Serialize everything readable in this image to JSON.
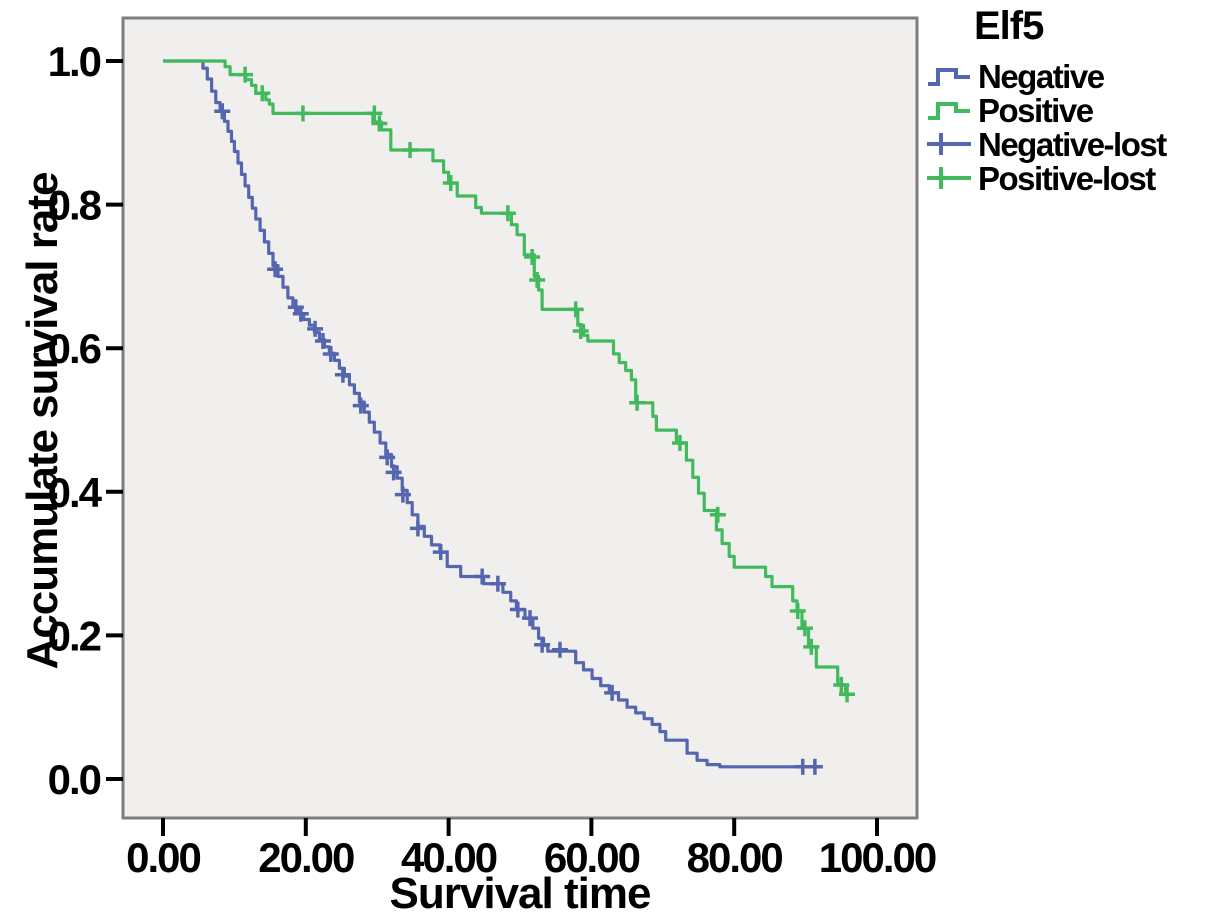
{
  "figure": {
    "legend": {
      "title": "Elf5",
      "entries": [
        {
          "label": "Negative",
          "symbol": "step-line",
          "color": "#5566b0"
        },
        {
          "label": "Positive",
          "symbol": "step-line",
          "color": "#42b95c"
        },
        {
          "label": "Negative-lost",
          "symbol": "censor-plus",
          "color": "#5566b0"
        },
        {
          "label": "Positive-lost",
          "symbol": "censor-plus",
          "color": "#42b95c"
        }
      ]
    }
  },
  "chart_data": {
    "type": "line",
    "subtype": "kaplan_meier_step",
    "title": "",
    "legend_title": "Elf5",
    "xlabel": "Survival time",
    "ylabel": "Accumulate survival rate",
    "xlim": [
      0,
      100
    ],
    "ylim": [
      0,
      1.0
    ],
    "grid": false,
    "legend_position": "outside-top-right",
    "plot_background": "#f0efee",
    "frame_color": "#7e7e7e",
    "tick_color": "#000000",
    "x_ticks": [
      {
        "v": 0,
        "label": "0.00"
      },
      {
        "v": 20,
        "label": "20.00"
      },
      {
        "v": 40,
        "label": "40.00"
      },
      {
        "v": 60,
        "label": "60.00"
      },
      {
        "v": 80,
        "label": "80.00"
      },
      {
        "v": 100,
        "label": "100.00"
      }
    ],
    "y_ticks": [
      {
        "v": 0.0,
        "label": "0.0"
      },
      {
        "v": 0.2,
        "label": "0.2"
      },
      {
        "v": 0.4,
        "label": "0.4"
      },
      {
        "v": 0.6,
        "label": "0.6"
      },
      {
        "v": 0.8,
        "label": "0.8"
      },
      {
        "v": 1.0,
        "label": "1.0"
      }
    ],
    "series": [
      {
        "name": "Negative",
        "color": "#5566b0",
        "end_t": 91.7,
        "steps": [
          [
            0,
            1.0
          ],
          [
            5.6,
            0.99
          ],
          [
            6.2,
            0.975
          ],
          [
            6.8,
            0.958
          ],
          [
            7.4,
            0.942
          ],
          [
            8.0,
            0.93
          ],
          [
            8.6,
            0.916
          ],
          [
            9.1,
            0.902
          ],
          [
            9.6,
            0.888
          ],
          [
            10.0,
            0.874
          ],
          [
            10.5,
            0.858
          ],
          [
            11.0,
            0.842
          ],
          [
            11.5,
            0.826
          ],
          [
            12.0,
            0.81
          ],
          [
            12.5,
            0.795
          ],
          [
            13.0,
            0.78
          ],
          [
            13.6,
            0.764
          ],
          [
            14.2,
            0.748
          ],
          [
            14.8,
            0.732
          ],
          [
            15.4,
            0.715
          ],
          [
            16.1,
            0.7
          ],
          [
            16.8,
            0.685
          ],
          [
            17.5,
            0.67
          ],
          [
            18.2,
            0.657
          ],
          [
            18.9,
            0.648
          ],
          [
            19.7,
            0.64
          ],
          [
            20.5,
            0.632
          ],
          [
            21.2,
            0.622
          ],
          [
            21.9,
            0.612
          ],
          [
            22.6,
            0.602
          ],
          [
            23.3,
            0.593
          ],
          [
            24.0,
            0.583
          ],
          [
            24.7,
            0.572
          ],
          [
            25.4,
            0.561
          ],
          [
            26.1,
            0.549
          ],
          [
            26.8,
            0.537
          ],
          [
            27.5,
            0.525
          ],
          [
            28.2,
            0.511
          ],
          [
            28.9,
            0.497
          ],
          [
            29.6,
            0.483
          ],
          [
            30.4,
            0.468
          ],
          [
            31.2,
            0.452
          ],
          [
            32.0,
            0.435
          ],
          [
            32.8,
            0.419
          ],
          [
            33.5,
            0.402
          ],
          [
            34.2,
            0.385
          ],
          [
            34.9,
            0.368
          ],
          [
            35.7,
            0.352
          ],
          [
            36.6,
            0.338
          ],
          [
            37.6,
            0.326
          ],
          [
            38.8,
            0.316
          ],
          [
            39.8,
            0.296
          ],
          [
            41.7,
            0.282
          ],
          [
            44.9,
            0.272
          ],
          [
            47.6,
            0.26
          ],
          [
            48.7,
            0.248
          ],
          [
            49.5,
            0.236
          ],
          [
            50.7,
            0.224
          ],
          [
            51.8,
            0.21
          ],
          [
            52.6,
            0.196
          ],
          [
            53.3,
            0.186
          ],
          [
            53.9,
            0.178
          ],
          [
            57.8,
            0.162
          ],
          [
            58.9,
            0.152
          ],
          [
            60.1,
            0.14
          ],
          [
            61.3,
            0.13
          ],
          [
            62.5,
            0.12
          ],
          [
            63.8,
            0.11
          ],
          [
            65.0,
            0.1
          ],
          [
            66.2,
            0.092
          ],
          [
            67.4,
            0.084
          ],
          [
            68.5,
            0.076
          ],
          [
            69.6,
            0.066
          ],
          [
            70.4,
            0.054
          ],
          [
            73.4,
            0.036
          ],
          [
            74.8,
            0.026
          ],
          [
            76.2,
            0.02
          ],
          [
            78.0,
            0.017
          ]
        ],
        "censors": [
          [
            8.3,
            0.93
          ],
          [
            15.7,
            0.71
          ],
          [
            18.6,
            0.657
          ],
          [
            19.3,
            0.648
          ],
          [
            21.3,
            0.627
          ],
          [
            22.4,
            0.61
          ],
          [
            23.5,
            0.592
          ],
          [
            25.2,
            0.563
          ],
          [
            27.7,
            0.52
          ],
          [
            31.4,
            0.448
          ],
          [
            32.3,
            0.427
          ],
          [
            33.6,
            0.396
          ],
          [
            35.7,
            0.349
          ],
          [
            38.9,
            0.316
          ],
          [
            44.7,
            0.282
          ],
          [
            46.9,
            0.272
          ],
          [
            49.7,
            0.236
          ],
          [
            51.4,
            0.224
          ],
          [
            53.1,
            0.187
          ],
          [
            55.6,
            0.18
          ],
          [
            62.9,
            0.12
          ],
          [
            89.6,
            0.017
          ],
          [
            91.3,
            0.017
          ]
        ]
      },
      {
        "name": "Positive",
        "color": "#42b95c",
        "end_t": 96.4,
        "steps": [
          [
            0,
            1.0
          ],
          [
            8.7,
            0.992
          ],
          [
            9.4,
            0.981
          ],
          [
            11.6,
            0.974
          ],
          [
            12.4,
            0.966
          ],
          [
            13.0,
            0.955
          ],
          [
            14.4,
            0.946
          ],
          [
            14.9,
            0.94
          ],
          [
            15.4,
            0.927
          ],
          [
            29.4,
            0.915
          ],
          [
            30.6,
            0.904
          ],
          [
            31.9,
            0.876
          ],
          [
            37.8,
            0.861
          ],
          [
            39.3,
            0.845
          ],
          [
            40.0,
            0.83
          ],
          [
            41.2,
            0.812
          ],
          [
            43.8,
            0.796
          ],
          [
            44.6,
            0.788
          ],
          [
            48.8,
            0.772
          ],
          [
            49.6,
            0.758
          ],
          [
            50.6,
            0.73
          ],
          [
            52.0,
            0.7
          ],
          [
            52.6,
            0.681
          ],
          [
            53.1,
            0.654
          ],
          [
            58.1,
            0.632
          ],
          [
            58.9,
            0.618
          ],
          [
            59.5,
            0.61
          ],
          [
            63.1,
            0.592
          ],
          [
            63.9,
            0.58
          ],
          [
            64.8,
            0.569
          ],
          [
            65.6,
            0.556
          ],
          [
            66.2,
            0.524
          ],
          [
            68.6,
            0.505
          ],
          [
            69.1,
            0.486
          ],
          [
            71.9,
            0.468
          ],
          [
            73.3,
            0.444
          ],
          [
            74.2,
            0.42
          ],
          [
            75.0,
            0.398
          ],
          [
            75.8,
            0.374
          ],
          [
            77.5,
            0.347
          ],
          [
            78.3,
            0.328
          ],
          [
            79.3,
            0.31
          ],
          [
            80.0,
            0.295
          ],
          [
            84.4,
            0.282
          ],
          [
            85.3,
            0.268
          ],
          [
            88.2,
            0.248
          ],
          [
            88.8,
            0.234
          ],
          [
            89.5,
            0.21
          ],
          [
            90.4,
            0.184
          ],
          [
            91.5,
            0.156
          ],
          [
            94.5,
            0.131
          ],
          [
            95.6,
            0.118
          ]
        ],
        "censors": [
          [
            11.5,
            0.981
          ],
          [
            13.9,
            0.955
          ],
          [
            19.6,
            0.927
          ],
          [
            29.6,
            0.927
          ],
          [
            30.3,
            0.913
          ],
          [
            34.6,
            0.876
          ],
          [
            40.3,
            0.83
          ],
          [
            48.3,
            0.788
          ],
          [
            51.7,
            0.727
          ],
          [
            52.4,
            0.695
          ],
          [
            57.8,
            0.654
          ],
          [
            58.5,
            0.624
          ],
          [
            66.4,
            0.524
          ],
          [
            72.4,
            0.468
          ],
          [
            77.7,
            0.368
          ],
          [
            88.9,
            0.234
          ],
          [
            89.9,
            0.21
          ],
          [
            90.8,
            0.184
          ],
          [
            95.0,
            0.131
          ],
          [
            95.8,
            0.118
          ]
        ]
      }
    ]
  }
}
